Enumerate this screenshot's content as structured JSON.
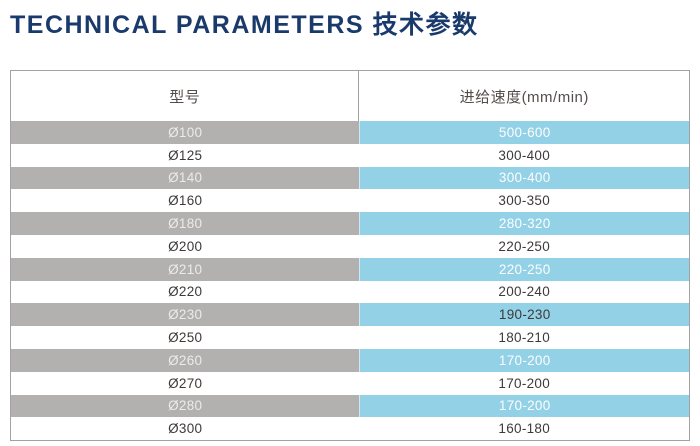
{
  "title": "TECHNICAL PARAMETERS 技术参数",
  "colors": {
    "title_navy": "#1a3a6c",
    "gray_cell": "#b3b1b0",
    "blue_cell": "#93d1e6",
    "table_border": "#a2a2a2",
    "header_text": "#544e4b",
    "dark_text": "#3e3a39",
    "light_text": "#fdfdfd"
  },
  "table": {
    "headers": [
      "型号",
      "进给速度(mm/min)"
    ],
    "rows": [
      {
        "model": "Ø100",
        "speed": "500-600",
        "shaded": true,
        "value_dark": false
      },
      {
        "model": "Ø125",
        "speed": "300-400",
        "shaded": false,
        "value_dark": false
      },
      {
        "model": "Ø140",
        "speed": "300-400",
        "shaded": true,
        "value_dark": false
      },
      {
        "model": "Ø160",
        "speed": "300-350",
        "shaded": false,
        "value_dark": false
      },
      {
        "model": "Ø180",
        "speed": "280-320",
        "shaded": true,
        "value_dark": false
      },
      {
        "model": "Ø200",
        "speed": "220-250",
        "shaded": false,
        "value_dark": false
      },
      {
        "model": "Ø210",
        "speed": "220-250",
        "shaded": true,
        "value_dark": false
      },
      {
        "model": "Ø220",
        "speed": "200-240",
        "shaded": false,
        "value_dark": false
      },
      {
        "model": "Ø230",
        "speed": "190-230",
        "shaded": true,
        "value_dark": true
      },
      {
        "model": "Ø250",
        "speed": "180-210",
        "shaded": false,
        "value_dark": false
      },
      {
        "model": "Ø260",
        "speed": "170-200",
        "shaded": true,
        "value_dark": false
      },
      {
        "model": "Ø270",
        "speed": "170-200",
        "shaded": false,
        "value_dark": false
      },
      {
        "model": "Ø280",
        "speed": "170-200",
        "shaded": true,
        "value_dark": false
      },
      {
        "model": "Ø300",
        "speed": "160-180",
        "shaded": false,
        "value_dark": false
      }
    ]
  }
}
